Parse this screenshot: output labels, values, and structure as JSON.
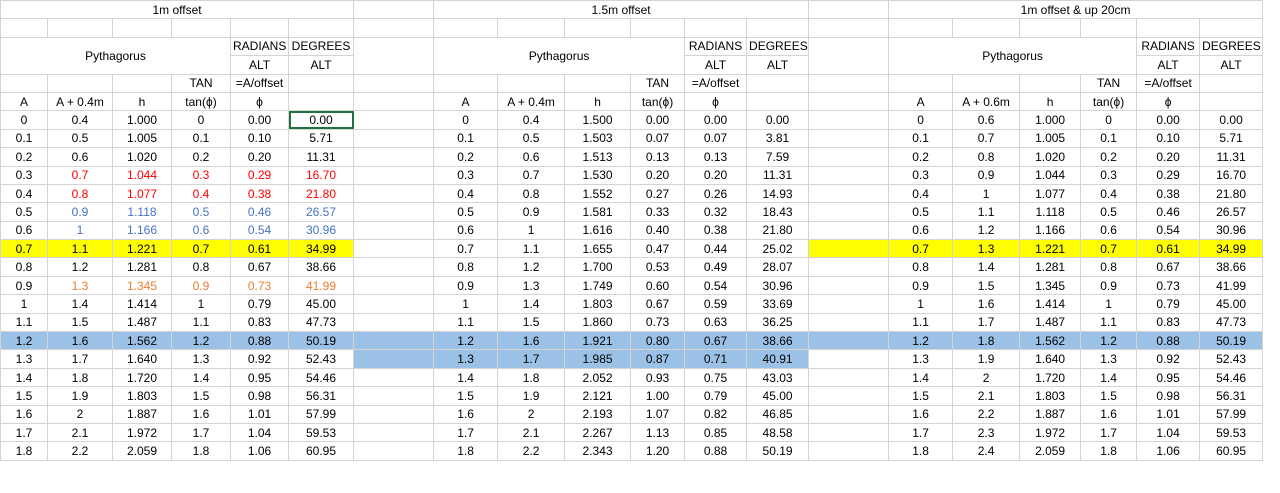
{
  "sections": [
    {
      "title": "1m offset",
      "headers": {
        "pythagoras": "Pythagorus",
        "radians_top": "RADIANS",
        "radians_alt": "ALT",
        "degrees_top": "DEGREES",
        "degrees_alt": "ALT",
        "tan_label": "TAN",
        "formula": "=A/offset",
        "col_a": "A",
        "col_a_plus": "A + 0.4m",
        "col_h": "h",
        "col_tan": "tan(ϕ)",
        "col_phi": "ϕ"
      },
      "rows": [
        [
          "0",
          "0.4",
          "1.000",
          "0",
          "0.00",
          "0.00"
        ],
        [
          "0.1",
          "0.5",
          "1.005",
          "0.1",
          "0.10",
          "5.71"
        ],
        [
          "0.2",
          "0.6",
          "1.020",
          "0.2",
          "0.20",
          "11.31"
        ],
        [
          "0.3",
          "0.7",
          "1.044",
          "0.3",
          "0.29",
          "16.70"
        ],
        [
          "0.4",
          "0.8",
          "1.077",
          "0.4",
          "0.38",
          "21.80"
        ],
        [
          "0.5",
          "0.9",
          "1.118",
          "0.5",
          "0.46",
          "26.57"
        ],
        [
          "0.6",
          "1",
          "1.166",
          "0.6",
          "0.54",
          "30.96"
        ],
        [
          "0.7",
          "1.1",
          "1.221",
          "0.7",
          "0.61",
          "34.99"
        ],
        [
          "0.8",
          "1.2",
          "1.281",
          "0.8",
          "0.67",
          "38.66"
        ],
        [
          "0.9",
          "1.3",
          "1.345",
          "0.9",
          "0.73",
          "41.99"
        ],
        [
          "1",
          "1.4",
          "1.414",
          "1",
          "0.79",
          "45.00"
        ],
        [
          "1.1",
          "1.5",
          "1.487",
          "1.1",
          "0.83",
          "47.73"
        ],
        [
          "1.2",
          "1.6",
          "1.562",
          "1.2",
          "0.88",
          "50.19"
        ],
        [
          "1.3",
          "1.7",
          "1.640",
          "1.3",
          "0.92",
          "52.43"
        ],
        [
          "1.4",
          "1.8",
          "1.720",
          "1.4",
          "0.95",
          "54.46"
        ],
        [
          "1.5",
          "1.9",
          "1.803",
          "1.5",
          "0.98",
          "56.31"
        ],
        [
          "1.6",
          "2",
          "1.887",
          "1.6",
          "1.01",
          "57.99"
        ],
        [
          "1.7",
          "2.1",
          "1.972",
          "1.7",
          "1.04",
          "59.53"
        ],
        [
          "1.8",
          "2.2",
          "2.059",
          "1.8",
          "1.06",
          "60.95"
        ]
      ]
    },
    {
      "title": "1.5m offset",
      "headers": {
        "pythagoras": "Pythagorus",
        "radians_top": "RADIANS",
        "radians_alt": "ALT",
        "degrees_top": "DEGREES",
        "degrees_alt": "ALT",
        "tan_label": "TAN",
        "formula": "=A/offset",
        "col_a": "A",
        "col_a_plus": "A + 0.4m",
        "col_h": "h",
        "col_tan": "tan(ϕ)",
        "col_phi": "ϕ"
      },
      "rows": [
        [
          "0",
          "0.4",
          "1.500",
          "0.00",
          "0.00",
          "0.00"
        ],
        [
          "0.1",
          "0.5",
          "1.503",
          "0.07",
          "0.07",
          "3.81"
        ],
        [
          "0.2",
          "0.6",
          "1.513",
          "0.13",
          "0.13",
          "7.59"
        ],
        [
          "0.3",
          "0.7",
          "1.530",
          "0.20",
          "0.20",
          "11.31"
        ],
        [
          "0.4",
          "0.8",
          "1.552",
          "0.27",
          "0.26",
          "14.93"
        ],
        [
          "0.5",
          "0.9",
          "1.581",
          "0.33",
          "0.32",
          "18.43"
        ],
        [
          "0.6",
          "1",
          "1.616",
          "0.40",
          "0.38",
          "21.80"
        ],
        [
          "0.7",
          "1.1",
          "1.655",
          "0.47",
          "0.44",
          "25.02"
        ],
        [
          "0.8",
          "1.2",
          "1.700",
          "0.53",
          "0.49",
          "28.07"
        ],
        [
          "0.9",
          "1.3",
          "1.749",
          "0.60",
          "0.54",
          "30.96"
        ],
        [
          "1",
          "1.4",
          "1.803",
          "0.67",
          "0.59",
          "33.69"
        ],
        [
          "1.1",
          "1.5",
          "1.860",
          "0.73",
          "0.63",
          "36.25"
        ],
        [
          "1.2",
          "1.6",
          "1.921",
          "0.80",
          "0.67",
          "38.66"
        ],
        [
          "1.3",
          "1.7",
          "1.985",
          "0.87",
          "0.71",
          "40.91"
        ],
        [
          "1.4",
          "1.8",
          "2.052",
          "0.93",
          "0.75",
          "43.03"
        ],
        [
          "1.5",
          "1.9",
          "2.121",
          "1.00",
          "0.79",
          "45.00"
        ],
        [
          "1.6",
          "2",
          "2.193",
          "1.07",
          "0.82",
          "46.85"
        ],
        [
          "1.7",
          "2.1",
          "2.267",
          "1.13",
          "0.85",
          "48.58"
        ],
        [
          "1.8",
          "2.2",
          "2.343",
          "1.20",
          "0.88",
          "50.19"
        ]
      ]
    },
    {
      "title": "1m offset & up 20cm",
      "headers": {
        "pythagoras": "Pythagorus",
        "radians_top": "RADIANS",
        "radians_alt": "ALT",
        "degrees_top": "DEGREES",
        "degrees_alt": "ALT",
        "tan_label": "TAN",
        "formula": "=A/offset",
        "col_a": "A",
        "col_a_plus": "A + 0.6m",
        "col_h": "h",
        "col_tan": "tan(ϕ)",
        "col_phi": "ϕ"
      },
      "rows": [
        [
          "0",
          "0.6",
          "1.000",
          "0",
          "0.00",
          "0.00"
        ],
        [
          "0.1",
          "0.7",
          "1.005",
          "0.1",
          "0.10",
          "5.71"
        ],
        [
          "0.2",
          "0.8",
          "1.020",
          "0.2",
          "0.20",
          "11.31"
        ],
        [
          "0.3",
          "0.9",
          "1.044",
          "0.3",
          "0.29",
          "16.70"
        ],
        [
          "0.4",
          "1",
          "1.077",
          "0.4",
          "0.38",
          "21.80"
        ],
        [
          "0.5",
          "1.1",
          "1.118",
          "0.5",
          "0.46",
          "26.57"
        ],
        [
          "0.6",
          "1.2",
          "1.166",
          "0.6",
          "0.54",
          "30.96"
        ],
        [
          "0.7",
          "1.3",
          "1.221",
          "0.7",
          "0.61",
          "34.99"
        ],
        [
          "0.8",
          "1.4",
          "1.281",
          "0.8",
          "0.67",
          "38.66"
        ],
        [
          "0.9",
          "1.5",
          "1.345",
          "0.9",
          "0.73",
          "41.99"
        ],
        [
          "1",
          "1.6",
          "1.414",
          "1",
          "0.79",
          "45.00"
        ],
        [
          "1.1",
          "1.7",
          "1.487",
          "1.1",
          "0.83",
          "47.73"
        ],
        [
          "1.2",
          "1.8",
          "1.562",
          "1.2",
          "0.88",
          "50.19"
        ],
        [
          "1.3",
          "1.9",
          "1.640",
          "1.3",
          "0.92",
          "52.43"
        ],
        [
          "1.4",
          "2",
          "1.720",
          "1.4",
          "0.95",
          "54.46"
        ],
        [
          "1.5",
          "2.1",
          "1.803",
          "1.5",
          "0.98",
          "56.31"
        ],
        [
          "1.6",
          "2.2",
          "1.887",
          "1.6",
          "1.01",
          "57.99"
        ],
        [
          "1.7",
          "2.3",
          "1.972",
          "1.7",
          "1.04",
          "59.53"
        ],
        [
          "1.8",
          "2.4",
          "2.059",
          "1.8",
          "1.06",
          "60.95"
        ]
      ]
    }
  ],
  "styles": {
    "colors": {
      "yellow_fill": "#ffff00",
      "blue_fill": "#9bc2e6",
      "red_text": "#ff0000",
      "blue_text": "#4472c4",
      "orange_text": "#ed7d31",
      "selection_border": "#217346",
      "gridline": "#d4d4d4"
    },
    "section_highlights": [
      {
        "yellow_rows": [
          7
        ],
        "blue_rows": [
          12
        ],
        "red_text_rows": [
          3,
          4
        ],
        "blue_text_rows": [
          5,
          6
        ],
        "orange_text_rows": [
          9
        ],
        "colored_from_col": 1
      },
      {
        "yellow_rows": [],
        "blue_rows": [
          12,
          13
        ],
        "red_text_rows": [],
        "blue_text_rows": [],
        "orange_text_rows": [],
        "colored_from_col": 1
      },
      {
        "yellow_rows": [
          7
        ],
        "blue_rows": [
          12
        ],
        "red_text_rows": [],
        "blue_text_rows": [],
        "orange_text_rows": [],
        "colored_from_col": 1
      }
    ],
    "selected_cell": {
      "section": 0,
      "row": 0,
      "col": 5
    }
  }
}
